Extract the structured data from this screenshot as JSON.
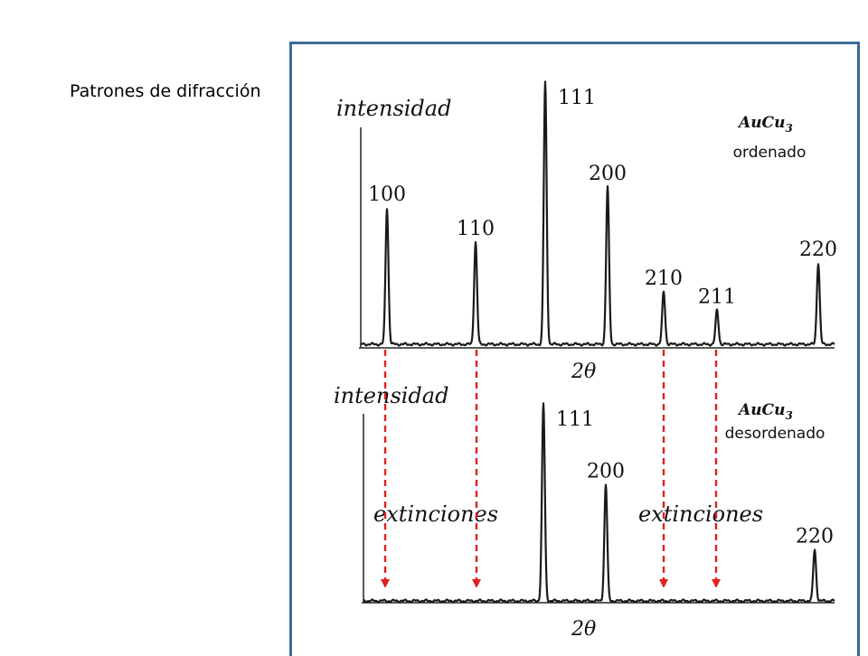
{
  "slide": {
    "title": "Patrones de difracción"
  },
  "annotations": {
    "extinction_left": "extinciones",
    "extinction_right": "extinciones"
  },
  "colors": {
    "frame": "#3e6a9a",
    "extinction_arrow": "#e02020",
    "trace": "#1a1a1a"
  },
  "chart_data": [
    {
      "type": "line",
      "compound": "AuCu",
      "compound_subscript": "3",
      "state_label": "ordenado",
      "ylabel": "intensidad",
      "xlabel": "2θ",
      "grid": false,
      "peaks": [
        {
          "label": "100",
          "rel_intensity": 0.52
        },
        {
          "label": "110",
          "rel_intensity": 0.39
        },
        {
          "label": "111",
          "rel_intensity": 1.0
        },
        {
          "label": "200",
          "rel_intensity": 0.6
        },
        {
          "label": "210",
          "rel_intensity": 0.2
        },
        {
          "label": "211",
          "rel_intensity": 0.13
        },
        {
          "label": "220",
          "rel_intensity": 0.31
        }
      ]
    },
    {
      "type": "line",
      "compound": "AuCu",
      "compound_subscript": "3",
      "state_label": "desordenado",
      "ylabel": "intensidad",
      "xlabel": "2θ",
      "grid": false,
      "peaks": [
        {
          "label": "111",
          "rel_intensity": 1.0
        },
        {
          "label": "200",
          "rel_intensity": 0.59
        },
        {
          "label": "220",
          "rel_intensity": 0.26
        }
      ]
    }
  ]
}
